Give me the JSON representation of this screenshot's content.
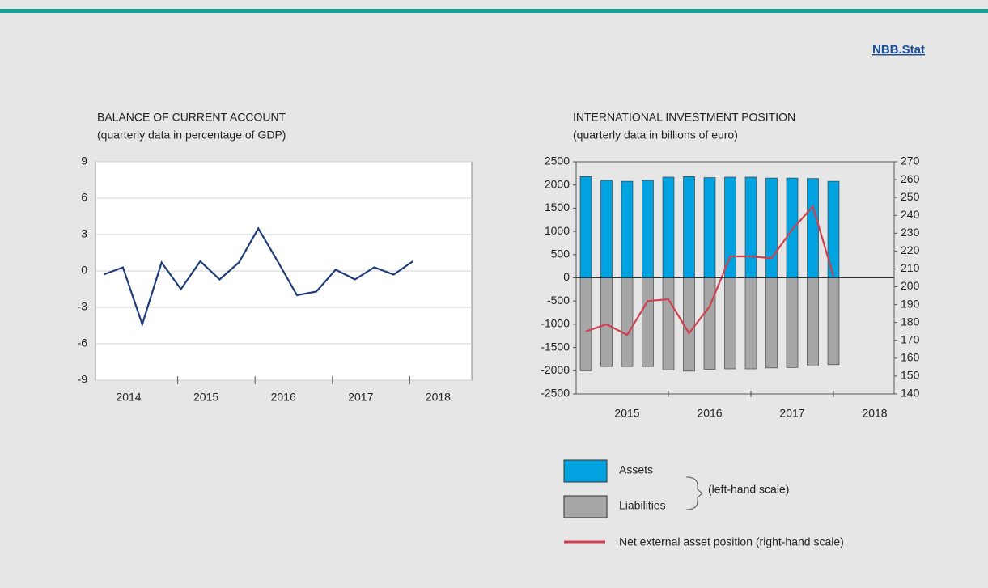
{
  "header": {
    "link": "NBB.Stat"
  },
  "chart_data": [
    {
      "type": "line",
      "title": "BALANCE OF CURRENT ACCOUNT",
      "subtitle": "(quarterly data in percentage of GDP)",
      "year_labels": [
        "2014",
        "2015",
        "2016",
        "2017",
        "2018"
      ],
      "values": [
        -0.3,
        0.3,
        -4.4,
        0.7,
        -1.5,
        0.8,
        -0.7,
        0.7,
        3.5,
        0.8,
        -2.0,
        -1.7,
        0.1,
        -0.7,
        0.3,
        -0.3,
        0.8
      ],
      "color": "#1f3d7a",
      "ylim": [
        -9,
        9
      ],
      "yticks": [
        9,
        6,
        3,
        0,
        -3,
        -6,
        -9
      ],
      "grid": true
    },
    {
      "type": "bar",
      "title": "INTERNATIONAL INVESTMENT POSITION",
      "subtitle": "(quarterly data in billions of euro)",
      "year_labels": [
        "2015",
        "2016",
        "2017",
        "2018"
      ],
      "series": [
        {
          "name": "Assets",
          "color": "#00a3e0",
          "values": [
            2180,
            2100,
            2080,
            2100,
            2170,
            2180,
            2160,
            2170,
            2170,
            2150,
            2150,
            2140,
            2080
          ]
        },
        {
          "name": "Liabilities",
          "color": "#a6a6a6",
          "values": [
            -2000,
            -1910,
            -1910,
            -1910,
            -1980,
            -2010,
            -1970,
            -1960,
            -1960,
            -1940,
            -1930,
            -1900,
            -1870
          ]
        },
        {
          "name": "Net external asset position (right-hand scale)",
          "color": "#d0414f",
          "axis": "y2",
          "values": [
            175,
            179,
            173,
            192,
            193,
            174,
            189,
            217,
            217,
            216,
            232,
            245,
            206
          ]
        }
      ],
      "legend_note": "(left-hand scale)",
      "ylim": [
        -2500,
        2500
      ],
      "yticks": [
        2500,
        2000,
        1500,
        1000,
        500,
        0,
        -500,
        -1000,
        -1500,
        -2000,
        -2500
      ],
      "y2lim": [
        140,
        270
      ],
      "y2ticks": [
        270,
        260,
        250,
        240,
        230,
        220,
        210,
        200,
        190,
        180,
        170,
        160,
        150,
        140
      ],
      "grid": false
    }
  ]
}
